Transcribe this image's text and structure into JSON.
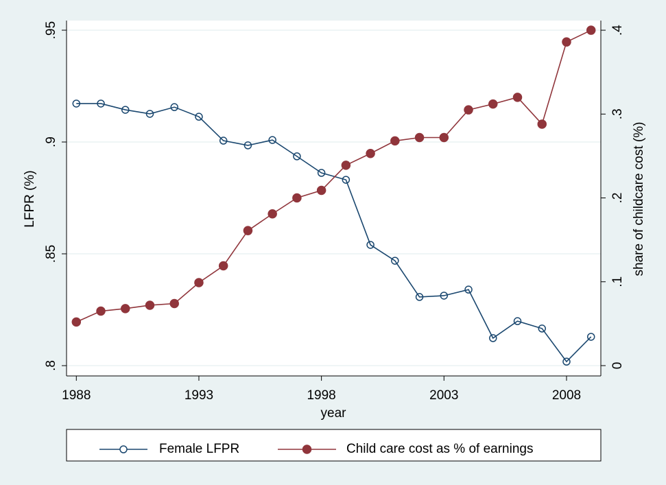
{
  "chart_data": {
    "type": "line",
    "x_label": "year",
    "y_label": "LFPR (%)",
    "y2_label": "share of childcare cost (%)",
    "x": [
      1988,
      1989,
      1990,
      1991,
      1992,
      1993,
      1994,
      1995,
      1996,
      1997,
      1998,
      1999,
      2000,
      2001,
      2002,
      2003,
      2004,
      2005,
      2006,
      2007,
      2008,
      2009
    ],
    "series": [
      {
        "name": "Female LFPR",
        "color": "#1a476f",
        "marker": "hollow-circle",
        "axis": "y",
        "values": [
          0.9172,
          0.9172,
          0.9144,
          0.9126,
          0.9156,
          0.9113,
          0.9006,
          0.8985,
          0.9009,
          0.8936,
          0.8862,
          0.8831,
          0.854,
          0.8469,
          0.8307,
          0.8313,
          0.834,
          0.8123,
          0.8199,
          0.8166,
          0.8018,
          0.8129
        ]
      },
      {
        "name": "Child care cost as % of earnings",
        "color": "#90353b",
        "marker": "filled-circle",
        "axis": "y2",
        "values": [
          0.052,
          0.065,
          0.068,
          0.072,
          0.074,
          0.099,
          0.119,
          0.161,
          0.181,
          0.2,
          0.209,
          0.239,
          0.253,
          0.268,
          0.272,
          0.272,
          0.305,
          0.312,
          0.32,
          0.288,
          0.386,
          0.4
        ]
      }
    ],
    "xlim": [
      1987.6,
      2009.4
    ],
    "xticks": [
      1988,
      1993,
      1998,
      2003,
      2008
    ],
    "ylim": [
      0.7954,
      0.9543
    ],
    "yticks": [
      {
        "value": 0.8,
        "label": ".8"
      },
      {
        "value": 0.85,
        "label": ".85"
      },
      {
        "value": 0.9,
        "label": ".9"
      },
      {
        "value": 0.95,
        "label": ".95"
      }
    ],
    "y2lim": [
      -0.0123,
      0.4115
    ],
    "y2ticks": [
      0,
      {
        "value": 0.1,
        "label": ".1"
      },
      {
        "value": 0.2,
        "label": ".2"
      },
      {
        "value": 0.3,
        "label": ".3"
      },
      {
        "value": 0.4,
        "label": ".4"
      }
    ],
    "grid": true,
    "legend": "bottom"
  }
}
